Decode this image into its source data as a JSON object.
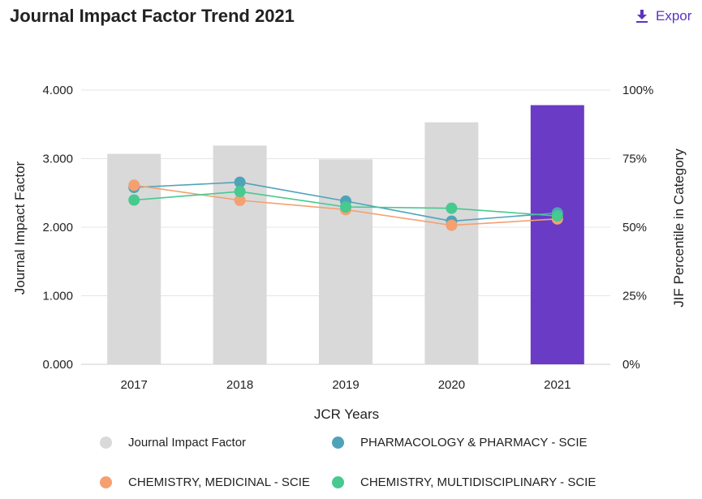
{
  "header": {
    "title": "Journal Impact Factor Trend 2021",
    "export_label": "Expor"
  },
  "colors": {
    "bar_default": "#d9d9d9",
    "bar_highlight": "#6a3bc4",
    "grid": "#e6e6e6"
  },
  "chart_data": {
    "type": "bar",
    "title": "Journal Impact Factor Trend 2021",
    "xlabel": "JCR Years",
    "ylabel": "Journal Impact Factor",
    "y2label": "JIF Percentile in Category",
    "categories": [
      "2017",
      "2018",
      "2019",
      "2020",
      "2021"
    ],
    "ylim": [
      0,
      4
    ],
    "y_ticks": [
      "0.000",
      "1.000",
      "2.000",
      "3.000",
      "4.000"
    ],
    "y2lim": [
      0,
      100
    ],
    "y2_ticks": [
      "0%",
      "25%",
      "50%",
      "75%",
      "100%"
    ],
    "grid": true,
    "highlight_category": "2021",
    "series": [
      {
        "name": "Journal Impact Factor",
        "kind": "bar",
        "axis": "left",
        "color": "#d9d9d9",
        "values": [
          3.07,
          3.19,
          2.99,
          3.53,
          3.78
        ]
      },
      {
        "name": "PHARMACOLOGY & PHARMACY - SCIE",
        "kind": "line",
        "axis": "right",
        "color": "#4fa3b8",
        "values": [
          64.5,
          66.4,
          59.5,
          52.2,
          55.2
        ]
      },
      {
        "name": "CHEMISTRY, MEDICINAL - SCIE",
        "kind": "line",
        "axis": "right",
        "color": "#f4a070",
        "values": [
          65.3,
          59.8,
          56.4,
          50.7,
          53.0
        ]
      },
      {
        "name": "CHEMISTRY, MULTIDISCIPLINARY - SCIE",
        "kind": "line",
        "axis": "right",
        "color": "#47c98f",
        "values": [
          59.9,
          63.0,
          57.4,
          56.9,
          54.1
        ]
      }
    ],
    "legend_position": "bottom"
  }
}
